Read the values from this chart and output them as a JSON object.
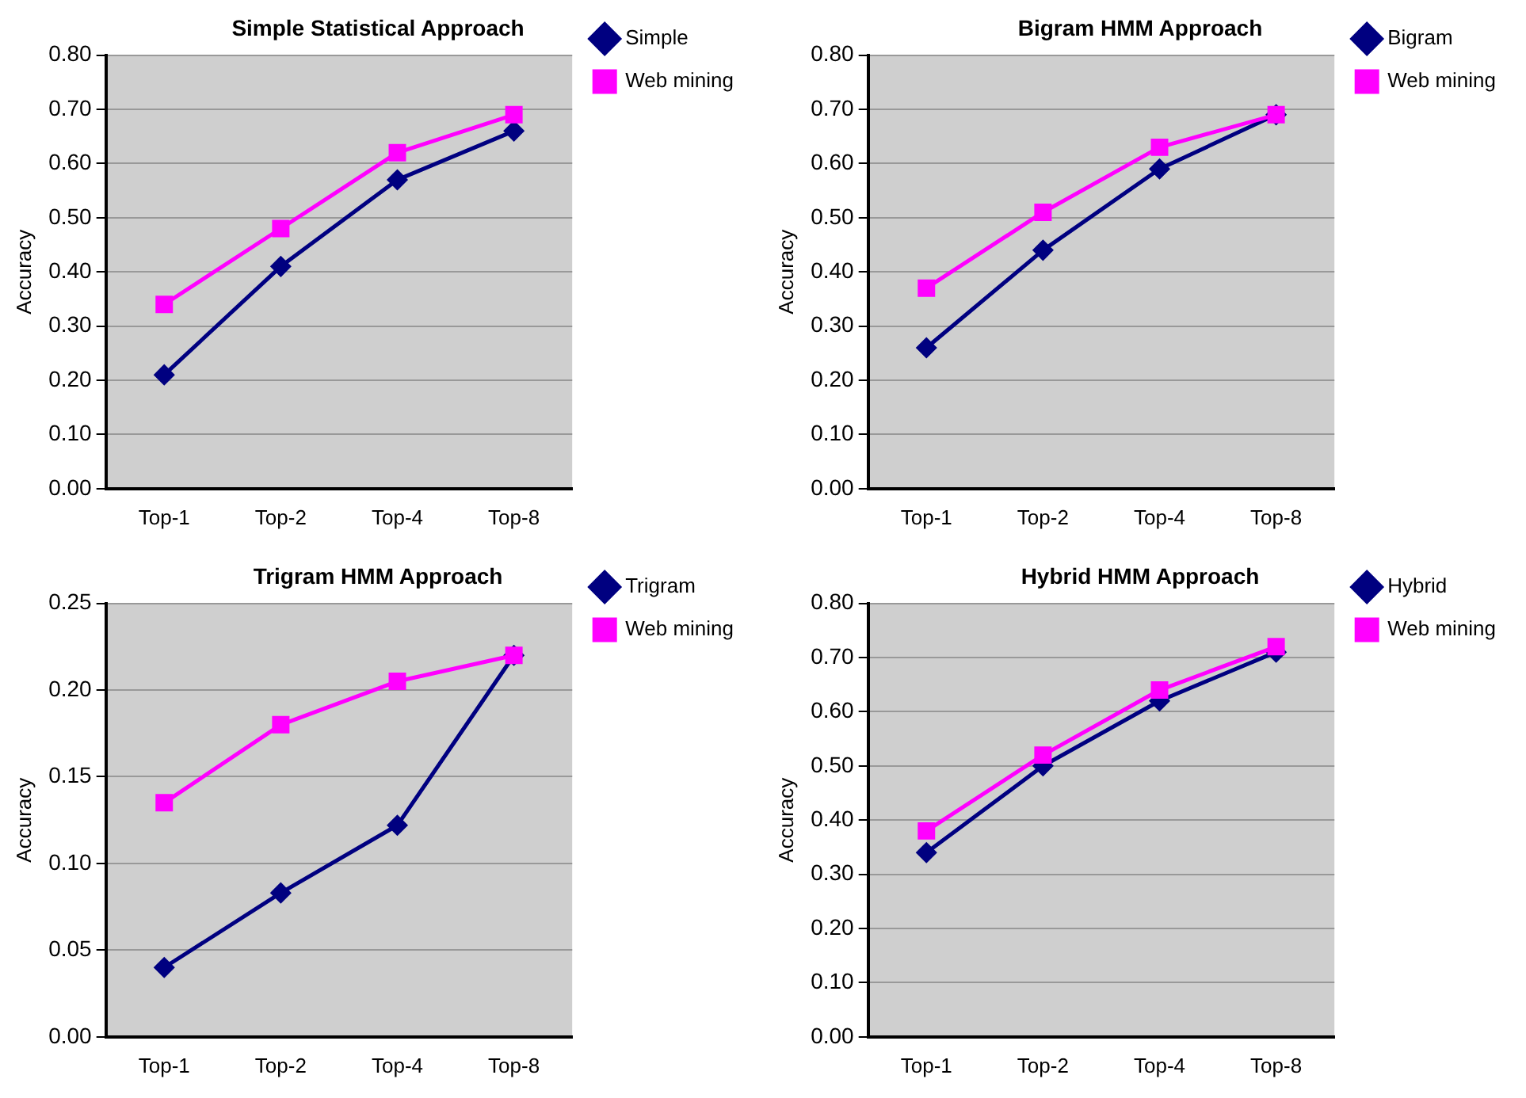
{
  "chart_data": [
    {
      "type": "line",
      "title": "Simple Statistical Approach",
      "ylabel": "Accuracy",
      "categories": [
        "Top-1",
        "Top-2",
        "Top-4",
        "Top-8"
      ],
      "series": [
        {
          "name": "Simple",
          "color": "#000080",
          "marker": "diamond",
          "values": [
            0.21,
            0.41,
            0.57,
            0.66
          ]
        },
        {
          "name": "Web mining",
          "color": "#ff00ff",
          "marker": "square",
          "values": [
            0.34,
            0.48,
            0.62,
            0.69
          ]
        }
      ],
      "ylim": [
        0,
        0.8
      ],
      "yticks": [
        {
          "value": 0,
          "label": "0.00"
        },
        {
          "value": 0.1,
          "label": "0.10"
        },
        {
          "value": 0.2,
          "label": "0.20"
        },
        {
          "value": 0.3,
          "label": "0.30"
        },
        {
          "value": 0.4,
          "label": "0.40"
        },
        {
          "value": 0.5,
          "label": "0.50"
        },
        {
          "value": 0.6,
          "label": "0.60"
        },
        {
          "value": 0.7,
          "label": "0.70"
        },
        {
          "value": 0.8,
          "label": "0.80"
        }
      ],
      "grid": "y",
      "legend": "top right"
    },
    {
      "type": "line",
      "title": "Bigram HMM Approach",
      "ylabel": "Accuracy",
      "categories": [
        "Top-1",
        "Top-2",
        "Top-4",
        "Top-8"
      ],
      "series": [
        {
          "name": "Bigram",
          "color": "#000080",
          "marker": "diamond",
          "values": [
            0.26,
            0.44,
            0.59,
            0.69
          ]
        },
        {
          "name": "Web mining",
          "color": "#ff00ff",
          "marker": "square",
          "values": [
            0.37,
            0.51,
            0.63,
            0.69
          ]
        }
      ],
      "ylim": [
        0,
        0.8
      ],
      "yticks": [
        {
          "value": 0,
          "label": "0.00"
        },
        {
          "value": 0.1,
          "label": "0.10"
        },
        {
          "value": 0.2,
          "label": "0.20"
        },
        {
          "value": 0.3,
          "label": "0.30"
        },
        {
          "value": 0.4,
          "label": "0.40"
        },
        {
          "value": 0.5,
          "label": "0.50"
        },
        {
          "value": 0.6,
          "label": "0.60"
        },
        {
          "value": 0.7,
          "label": "0.70"
        },
        {
          "value": 0.8,
          "label": "0.80"
        }
      ],
      "grid": "y",
      "legend": "top right"
    },
    {
      "type": "line",
      "title": "Trigram HMM Approach",
      "ylabel": "Accuracy",
      "categories": [
        "Top-1",
        "Top-2",
        "Top-4",
        "Top-8"
      ],
      "series": [
        {
          "name": "Trigram",
          "color": "#000080",
          "marker": "diamond",
          "values": [
            0.04,
            0.083,
            0.122,
            0.22
          ]
        },
        {
          "name": "Web mining",
          "color": "#ff00ff",
          "marker": "square",
          "values": [
            0.135,
            0.18,
            0.205,
            0.22
          ]
        }
      ],
      "ylim": [
        0,
        0.25
      ],
      "yticks": [
        {
          "value": 0,
          "label": "0.00"
        },
        {
          "value": 0.05,
          "label": "0.05"
        },
        {
          "value": 0.1,
          "label": "0.10"
        },
        {
          "value": 0.15,
          "label": "0.15"
        },
        {
          "value": 0.2,
          "label": "0.20"
        },
        {
          "value": 0.25,
          "label": "0.25"
        }
      ],
      "grid": "y",
      "legend": "top right"
    },
    {
      "type": "line",
      "title": "Hybrid HMM Approach",
      "ylabel": "Accuracy",
      "categories": [
        "Top-1",
        "Top-2",
        "Top-4",
        "Top-8"
      ],
      "series": [
        {
          "name": "Hybrid",
          "color": "#000080",
          "marker": "diamond",
          "values": [
            0.34,
            0.5,
            0.62,
            0.71
          ]
        },
        {
          "name": "Web mining",
          "color": "#ff00ff",
          "marker": "square",
          "values": [
            0.38,
            0.52,
            0.64,
            0.72
          ]
        }
      ],
      "ylim": [
        0,
        0.8
      ],
      "yticks": [
        {
          "value": 0,
          "label": "0.00"
        },
        {
          "value": 0.1,
          "label": "0.10"
        },
        {
          "value": 0.2,
          "label": "0.20"
        },
        {
          "value": 0.3,
          "label": "0.30"
        },
        {
          "value": 0.4,
          "label": "0.40"
        },
        {
          "value": 0.5,
          "label": "0.50"
        },
        {
          "value": 0.6,
          "label": "0.60"
        },
        {
          "value": 0.7,
          "label": "0.70"
        },
        {
          "value": 0.8,
          "label": "0.80"
        }
      ],
      "grid": "y",
      "legend": "top right"
    }
  ]
}
